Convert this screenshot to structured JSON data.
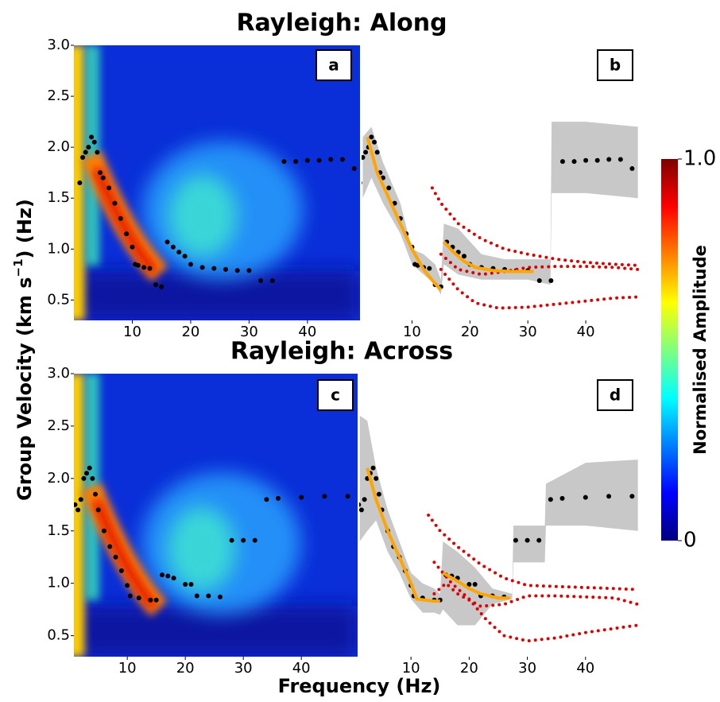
{
  "figure": {
    "y_label": [
      "Group Velocity (km s",
      "−1",
      ") (Hz)"
    ],
    "x_label": "Frequency (Hz)",
    "colorbar": {
      "label": "Normalised Amplitude",
      "lim": [
        0,
        1
      ],
      "ticks": [
        0,
        {
          "value": 1,
          "label": "1.0"
        }
      ],
      "colormap": [
        "#00007f",
        "#0000ff",
        "#007fff",
        "#00ffff",
        "#7fff7f",
        "#ffff00",
        "#ff7f00",
        "#ff0000",
        "#7f0000"
      ]
    }
  },
  "chart_data": [
    {
      "type": "heatmap",
      "panel_label": "a",
      "title": "Rayleigh: Along",
      "xlim": [
        0,
        49
      ],
      "ylim": [
        0.3,
        3.0
      ],
      "xticks": [
        10,
        20,
        30,
        40
      ],
      "yticks": [
        0.5,
        {
          "value": 1,
          "label": "1.0"
        },
        1.5,
        {
          "value": 2,
          "label": "2.0"
        },
        2.5,
        {
          "value": 3,
          "label": "3.0"
        }
      ],
      "picks": {
        "color": "#000000",
        "x": [
          1,
          1.5,
          2,
          2.5,
          3,
          3.5,
          4,
          4.5,
          5,
          6,
          7,
          8,
          9,
          10,
          10.5,
          11,
          12,
          13,
          14,
          15,
          16,
          17,
          18,
          19,
          20,
          22,
          24,
          26,
          28,
          30,
          32,
          34,
          36,
          38,
          40,
          42,
          44,
          46,
          48
        ],
        "y": [
          1.65,
          1.9,
          1.95,
          2.0,
          2.1,
          2.05,
          1.95,
          1.75,
          1.7,
          1.6,
          1.45,
          1.3,
          1.15,
          1.02,
          0.85,
          0.84,
          0.82,
          0.81,
          0.65,
          0.63,
          1.07,
          1.02,
          0.97,
          0.93,
          0.85,
          0.82,
          0.81,
          0.8,
          0.79,
          0.79,
          0.69,
          0.69,
          1.86,
          1.86,
          1.87,
          1.87,
          1.88,
          1.88,
          1.79
        ]
      }
    },
    {
      "type": "line",
      "panel_label": "b",
      "xlim": [
        1.3,
        50
      ],
      "ylim": [
        0.3,
        3.0
      ],
      "xticks": [
        10,
        20,
        30,
        40
      ],
      "picks": {
        "color": "#000000",
        "x": [
          1,
          1.5,
          2,
          2.5,
          3,
          3.5,
          4,
          4.5,
          5,
          6,
          7,
          8,
          9,
          10,
          10.5,
          11,
          12,
          13,
          14,
          15,
          16,
          17,
          18,
          19,
          20,
          22,
          24,
          26,
          28,
          30,
          32,
          34,
          36,
          38,
          40,
          42,
          44,
          46,
          48
        ],
        "y": [
          1.65,
          1.9,
          1.95,
          2.0,
          2.1,
          2.05,
          1.95,
          1.75,
          1.7,
          1.6,
          1.45,
          1.3,
          1.15,
          1.02,
          0.85,
          0.84,
          0.82,
          0.81,
          0.65,
          0.63,
          1.07,
          1.02,
          0.97,
          0.93,
          0.85,
          0.82,
          0.81,
          0.8,
          0.79,
          0.79,
          0.69,
          0.69,
          1.86,
          1.86,
          1.87,
          1.87,
          1.88,
          1.88,
          1.79
        ]
      },
      "band": {
        "color": "#c8c8c8",
        "x": [
          1.5,
          3,
          5,
          8,
          10,
          12,
          14,
          15,
          15.5,
          18,
          22,
          26,
          30,
          33.9,
          34.1,
          40,
          49
        ],
        "upper": [
          2.1,
          2.2,
          1.85,
          1.45,
          1.0,
          0.95,
          0.85,
          0.7,
          1.25,
          1.2,
          0.95,
          0.9,
          0.9,
          0.9,
          2.25,
          2.25,
          2.2
        ],
        "lower": [
          1.5,
          1.7,
          1.45,
          1.15,
          0.85,
          0.75,
          0.65,
          0.55,
          0.85,
          0.75,
          0.7,
          0.7,
          0.7,
          0.65,
          1.55,
          1.55,
          1.5
        ]
      },
      "fit": {
        "color": "#ffa500",
        "x": [
          2.3,
          4,
          6,
          8,
          10,
          12,
          14,
          15,
          null,
          15.5,
          17,
          19,
          21,
          24,
          27,
          31
        ],
        "y": [
          2.1,
          1.75,
          1.5,
          1.25,
          1.0,
          0.8,
          0.66,
          0.6,
          null,
          1.07,
          0.98,
          0.88,
          0.82,
          0.79,
          0.78,
          0.78
        ]
      },
      "model_color": "#e00000",
      "model_curves": [
        {
          "x": [
            13.5,
            15,
            18,
            22,
            26,
            30,
            35,
            40,
            45,
            49
          ],
          "y": [
            1.6,
            1.45,
            1.25,
            1.1,
            1.0,
            0.95,
            0.9,
            0.87,
            0.85,
            0.84
          ]
        },
        {
          "x": [
            15,
            18,
            22,
            26,
            30,
            35,
            40,
            45,
            49
          ],
          "y": [
            0.95,
            0.8,
            0.75,
            0.78,
            0.82,
            0.83,
            0.83,
            0.82,
            0.8
          ]
        },
        {
          "x": [
            15,
            18,
            21,
            25,
            30,
            35,
            40,
            45,
            49
          ],
          "y": [
            0.8,
            0.6,
            0.47,
            0.42,
            0.43,
            0.46,
            0.49,
            0.52,
            0.53
          ]
        }
      ]
    },
    {
      "type": "heatmap",
      "panel_label": "c",
      "title": "Rayleigh: Across",
      "xlim": [
        0.8,
        49.7
      ],
      "ylim": [
        0.3,
        3.0
      ],
      "xticks": [
        10,
        20,
        30,
        40
      ],
      "yticks": [
        0.5,
        {
          "value": 1,
          "label": "1.0"
        },
        1.5,
        {
          "value": 2,
          "label": "2.0"
        },
        2.5,
        {
          "value": 3,
          "label": "3.0"
        }
      ],
      "picks": {
        "color": "#000000",
        "x": [
          1,
          1.5,
          2,
          2.5,
          3,
          3.5,
          4,
          4.5,
          5,
          6,
          7,
          8,
          9,
          10,
          10.5,
          12,
          14,
          15,
          16,
          17,
          18,
          20,
          21,
          22,
          24,
          26,
          28,
          30,
          32,
          34,
          36,
          40,
          44,
          48
        ],
        "y": [
          1.75,
          1.7,
          1.8,
          2.0,
          2.05,
          2.1,
          2.0,
          1.85,
          1.7,
          1.5,
          1.35,
          1.25,
          1.12,
          0.98,
          0.88,
          0.86,
          0.84,
          0.84,
          1.08,
          1.07,
          1.05,
          0.99,
          0.99,
          0.88,
          0.88,
          0.87,
          1.41,
          1.41,
          1.41,
          1.8,
          1.81,
          1.82,
          1.83,
          1.83
        ]
      }
    },
    {
      "type": "line",
      "panel_label": "d",
      "xlim": [
        1.1,
        50
      ],
      "ylim": [
        0.3,
        3.0
      ],
      "xticks": [
        10,
        20,
        30,
        40
      ],
      "picks": {
        "color": "#000000",
        "x": [
          1,
          1.5,
          2,
          2.5,
          3,
          3.5,
          4,
          4.5,
          5,
          6,
          7,
          8,
          9,
          10,
          10.5,
          12,
          14,
          15,
          16,
          17,
          18,
          20,
          21,
          22,
          24,
          26,
          28,
          30,
          32,
          34,
          36,
          40,
          44,
          48
        ],
        "y": [
          1.75,
          1.7,
          1.8,
          2.0,
          2.05,
          2.1,
          2.0,
          1.85,
          1.7,
          1.5,
          1.35,
          1.25,
          1.12,
          0.98,
          0.88,
          0.86,
          0.84,
          0.84,
          1.08,
          1.07,
          1.05,
          0.99,
          0.99,
          0.88,
          0.88,
          0.87,
          1.41,
          1.41,
          1.41,
          1.8,
          1.81,
          1.82,
          1.83,
          1.83
        ]
      },
      "band": {
        "color": "#c8c8c8",
        "x": [
          1.2,
          2.5,
          4,
          6,
          8,
          10,
          12,
          14,
          15,
          15.5,
          18,
          21,
          24,
          27.4,
          27.6,
          33,
          33.2,
          40,
          49
        ],
        "upper": [
          2.6,
          2.55,
          2.1,
          1.7,
          1.4,
          1.1,
          1.0,
          0.95,
          0.9,
          1.4,
          1.3,
          1.15,
          0.95,
          0.9,
          1.55,
          1.55,
          1.95,
          2.15,
          2.18
        ],
        "lower": [
          1.4,
          1.5,
          1.6,
          1.3,
          1.1,
          0.85,
          0.72,
          0.72,
          0.7,
          0.75,
          0.6,
          0.6,
          0.8,
          0.85,
          1.2,
          1.2,
          1.55,
          1.55,
          1.5
        ]
      },
      "fit": {
        "color": "#ffa500",
        "x": [
          2.5,
          4,
          6,
          8,
          10,
          11,
          14,
          15,
          null,
          15.5,
          18,
          20,
          22,
          25,
          27
        ],
        "y": [
          2.1,
          1.8,
          1.5,
          1.25,
          1.0,
          0.85,
          0.83,
          0.83,
          null,
          1.1,
          1.02,
          0.95,
          0.9,
          0.86,
          0.86
        ]
      },
      "model_color": "#e00000",
      "model_curves": [
        {
          "x": [
            13,
            15,
            18,
            22,
            26,
            30,
            35,
            40,
            45,
            49
          ],
          "y": [
            1.65,
            1.5,
            1.35,
            1.18,
            1.05,
            0.98,
            0.97,
            0.96,
            0.95,
            0.94
          ]
        },
        {
          "x": [
            14,
            16,
            18,
            22,
            26,
            30,
            35,
            40,
            45,
            49
          ],
          "y": [
            0.9,
            1.0,
            0.9,
            0.78,
            0.8,
            0.88,
            0.88,
            0.87,
            0.86,
            0.8
          ]
        },
        {
          "x": [
            14,
            17,
            20,
            23,
            26,
            30,
            35,
            40,
            45,
            49
          ],
          "y": [
            1.2,
            1.0,
            0.85,
            0.65,
            0.5,
            0.45,
            0.48,
            0.53,
            0.57,
            0.6
          ]
        }
      ]
    }
  ]
}
